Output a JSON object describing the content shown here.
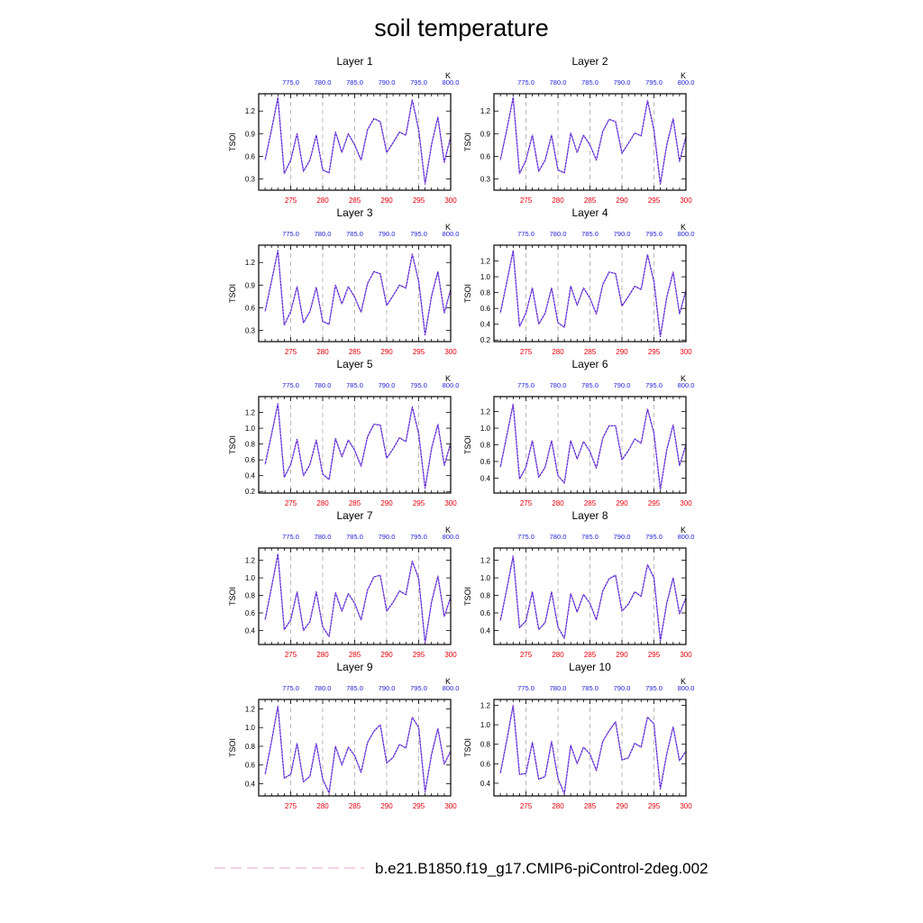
{
  "chart_data": {
    "type": "line",
    "title": "soil temperature",
    "legend": {
      "label": "b.e21.B1850.f19_g17.CMIP6-piControl-2deg.002",
      "line_color": "#e9a3cf",
      "placement": "bottom-center"
    },
    "series_color": "#3f15d9",
    "x": [
      271,
      272,
      273,
      274,
      275,
      276,
      277,
      278,
      279,
      280,
      281,
      282,
      283,
      284,
      285,
      286,
      287,
      288,
      289,
      290,
      291,
      292,
      293,
      294,
      295,
      296,
      297,
      298,
      299,
      300
    ],
    "xlim": [
      270,
      300
    ],
    "x_ticks": [
      275,
      280,
      285,
      290,
      295,
      300
    ],
    "x_tick_color": "#e8000b",
    "top_axis": {
      "unit_label": "K",
      "tick_labels": [
        "775.0",
        "780.0",
        "785.0",
        "790.0",
        "795.0",
        "800.0"
      ],
      "tick_color": "#1f1fd6"
    },
    "vertical_grid": {
      "style": "dashed",
      "color": "#aaaaaa"
    },
    "ylabel": "TSOI",
    "panels": [
      {
        "name": "Layer 1",
        "ylim": [
          0.15,
          1.43
        ],
        "y_ticks": [
          0.3,
          0.6,
          0.9,
          1.2
        ],
        "y_tick_labels": [
          "0.3",
          "0.6",
          "0.9",
          "1.2"
        ],
        "values": [
          0.55,
          0.95,
          1.38,
          0.37,
          0.55,
          0.9,
          0.4,
          0.55,
          0.88,
          0.42,
          0.38,
          0.92,
          0.65,
          0.9,
          0.75,
          0.55,
          0.95,
          1.1,
          1.06,
          0.65,
          0.78,
          0.92,
          0.88,
          1.35,
          0.95,
          0.23,
          0.75,
          1.12,
          0.52,
          0.86
        ]
      },
      {
        "name": "Layer 2",
        "ylim": [
          0.15,
          1.43
        ],
        "y_ticks": [
          0.3,
          0.6,
          0.9,
          1.2
        ],
        "y_tick_labels": [
          "0.3",
          "0.6",
          "0.9",
          "1.2"
        ],
        "values": [
          0.55,
          0.95,
          1.38,
          0.37,
          0.55,
          0.88,
          0.4,
          0.55,
          0.88,
          0.42,
          0.38,
          0.91,
          0.65,
          0.88,
          0.75,
          0.55,
          0.93,
          1.09,
          1.06,
          0.64,
          0.77,
          0.91,
          0.87,
          1.34,
          0.95,
          0.23,
          0.75,
          1.1,
          0.53,
          0.86
        ]
      },
      {
        "name": "Layer 3",
        "ylim": [
          0.15,
          1.43
        ],
        "y_ticks": [
          0.3,
          0.6,
          0.9,
          1.2
        ],
        "y_tick_labels": [
          "0.3",
          "0.6",
          "0.9",
          "1.2"
        ],
        "values": [
          0.55,
          0.95,
          1.36,
          0.37,
          0.55,
          0.88,
          0.4,
          0.55,
          0.87,
          0.42,
          0.38,
          0.9,
          0.65,
          0.88,
          0.74,
          0.54,
          0.92,
          1.08,
          1.05,
          0.63,
          0.76,
          0.9,
          0.86,
          1.31,
          0.95,
          0.24,
          0.75,
          1.08,
          0.53,
          0.84
        ]
      },
      {
        "name": "Layer 4",
        "ylim": [
          0.18,
          1.4
        ],
        "y_ticks": [
          0.2,
          0.4,
          0.6,
          0.8,
          1.0,
          1.2
        ],
        "y_tick_labels": [
          "0.2",
          "0.4",
          "0.6",
          "0.8",
          "1.0",
          "1.2"
        ],
        "values": [
          0.54,
          0.93,
          1.33,
          0.37,
          0.54,
          0.86,
          0.4,
          0.54,
          0.86,
          0.42,
          0.36,
          0.88,
          0.64,
          0.86,
          0.73,
          0.53,
          0.9,
          1.06,
          1.04,
          0.63,
          0.75,
          0.88,
          0.84,
          1.28,
          0.94,
          0.24,
          0.74,
          1.06,
          0.53,
          0.83
        ]
      },
      {
        "name": "Layer 5",
        "ylim": [
          0.18,
          1.4
        ],
        "y_ticks": [
          0.2,
          0.4,
          0.6,
          0.8,
          1.0,
          1.2
        ],
        "y_tick_labels": [
          "0.2",
          "0.4",
          "0.6",
          "0.8",
          "1.0",
          "1.2"
        ],
        "values": [
          0.54,
          0.92,
          1.31,
          0.38,
          0.54,
          0.86,
          0.4,
          0.54,
          0.85,
          0.42,
          0.35,
          0.87,
          0.64,
          0.85,
          0.72,
          0.52,
          0.89,
          1.05,
          1.04,
          0.62,
          0.74,
          0.88,
          0.83,
          1.27,
          0.93,
          0.24,
          0.74,
          1.05,
          0.53,
          0.81
        ]
      },
      {
        "name": "Layer 6",
        "ylim": [
          0.22,
          1.38
        ],
        "y_ticks": [
          0.4,
          0.6,
          0.8,
          1.0,
          1.2
        ],
        "y_tick_labels": [
          "0.4",
          "0.6",
          "0.8",
          "1.0",
          "1.2"
        ],
        "values": [
          0.53,
          0.91,
          1.29,
          0.39,
          0.53,
          0.85,
          0.41,
          0.53,
          0.85,
          0.43,
          0.34,
          0.85,
          0.63,
          0.84,
          0.72,
          0.52,
          0.88,
          1.03,
          1.03,
          0.62,
          0.73,
          0.87,
          0.82,
          1.23,
          0.94,
          0.26,
          0.74,
          1.04,
          0.55,
          0.8
        ]
      },
      {
        "name": "Layer 7",
        "ylim": [
          0.24,
          1.34
        ],
        "y_ticks": [
          0.4,
          0.6,
          0.8,
          1.0,
          1.2
        ],
        "y_tick_labels": [
          "0.4",
          "0.6",
          "0.8",
          "1.0",
          "1.2"
        ],
        "values": [
          0.52,
          0.89,
          1.27,
          0.41,
          0.52,
          0.84,
          0.4,
          0.5,
          0.84,
          0.44,
          0.33,
          0.83,
          0.62,
          0.82,
          0.71,
          0.52,
          0.86,
          1.01,
          1.03,
          0.62,
          0.72,
          0.85,
          0.81,
          1.19,
          0.99,
          0.26,
          0.72,
          1.02,
          0.56,
          0.78
        ]
      },
      {
        "name": "Layer 8",
        "ylim": [
          0.24,
          1.34
        ],
        "y_ticks": [
          0.4,
          0.6,
          0.8,
          1.0,
          1.2
        ],
        "y_tick_labels": [
          "0.4",
          "0.6",
          "0.8",
          "1.0",
          "1.2"
        ],
        "values": [
          0.51,
          0.87,
          1.25,
          0.43,
          0.51,
          0.84,
          0.41,
          0.49,
          0.84,
          0.44,
          0.31,
          0.82,
          0.61,
          0.81,
          0.71,
          0.52,
          0.85,
          0.99,
          1.03,
          0.62,
          0.7,
          0.84,
          0.79,
          1.15,
          1.0,
          0.28,
          0.71,
          1.0,
          0.59,
          0.77
        ]
      },
      {
        "name": "Layer 9",
        "ylim": [
          0.27,
          1.3
        ],
        "y_ticks": [
          0.4,
          0.6,
          0.8,
          1.0,
          1.2
        ],
        "y_tick_labels": [
          "0.4",
          "0.6",
          "0.8",
          "1.0",
          "1.2"
        ],
        "values": [
          0.5,
          0.85,
          1.23,
          0.46,
          0.5,
          0.83,
          0.42,
          0.48,
          0.83,
          0.45,
          0.3,
          0.8,
          0.6,
          0.79,
          0.7,
          0.52,
          0.84,
          0.96,
          1.03,
          0.62,
          0.68,
          0.82,
          0.78,
          1.11,
          1.0,
          0.31,
          0.71,
          0.99,
          0.61,
          0.75
        ]
      },
      {
        "name": "Layer 10",
        "ylim": [
          0.27,
          1.26
        ],
        "y_ticks": [
          0.4,
          0.6,
          0.8,
          1.0,
          1.2
        ],
        "y_tick_labels": [
          "0.4",
          "0.6",
          "0.8",
          "1.0",
          "1.2"
        ],
        "values": [
          0.5,
          0.84,
          1.2,
          0.49,
          0.5,
          0.82,
          0.44,
          0.47,
          0.83,
          0.45,
          0.29,
          0.79,
          0.6,
          0.77,
          0.7,
          0.53,
          0.83,
          0.94,
          1.03,
          0.64,
          0.66,
          0.81,
          0.77,
          1.08,
          1.01,
          0.34,
          0.7,
          0.98,
          0.63,
          0.73
        ]
      }
    ]
  }
}
